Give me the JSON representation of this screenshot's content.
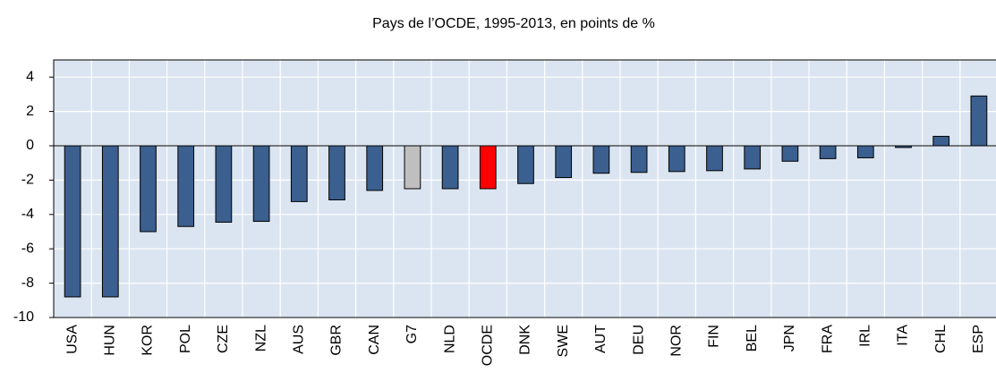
{
  "chart_data": {
    "type": "bar",
    "title": "Pays de l’OCDE, 1995-2013, en points de %",
    "categories": [
      "USA",
      "HUN",
      "KOR",
      "POL",
      "CZE",
      "NZL",
      "AUS",
      "GBR",
      "CAN",
      "G7",
      "NLD",
      "OCDE",
      "DNK",
      "SWE",
      "AUT",
      "DEU",
      "NOR",
      "FIN",
      "BEL",
      "JPN",
      "FRA",
      "IRL",
      "ITA",
      "CHL",
      "ESP"
    ],
    "values": [
      -8.8,
      -8.8,
      -5.0,
      -4.7,
      -4.45,
      -4.4,
      -3.25,
      -3.15,
      -2.6,
      -2.5,
      -2.5,
      -2.5,
      -2.2,
      -1.85,
      -1.6,
      -1.55,
      -1.5,
      -1.45,
      -1.35,
      -0.9,
      -0.75,
      -0.7,
      -0.1,
      0.55,
      2.9
    ],
    "colors": [
      "#3b5f8f",
      "#3b5f8f",
      "#3b5f8f",
      "#3b5f8f",
      "#3b5f8f",
      "#3b5f8f",
      "#3b5f8f",
      "#3b5f8f",
      "#3b5f8f",
      "#bfbfbf",
      "#3b5f8f",
      "#ff0000",
      "#3b5f8f",
      "#3b5f8f",
      "#3b5f8f",
      "#3b5f8f",
      "#3b5f8f",
      "#3b5f8f",
      "#3b5f8f",
      "#3b5f8f",
      "#3b5f8f",
      "#3b5f8f",
      "#3b5f8f",
      "#3b5f8f",
      "#3b5f8f"
    ],
    "ylim": [
      -10,
      5
    ],
    "yticks": [
      -10,
      -8,
      -6,
      -4,
      -2,
      0,
      2,
      4
    ],
    "grid": true
  }
}
